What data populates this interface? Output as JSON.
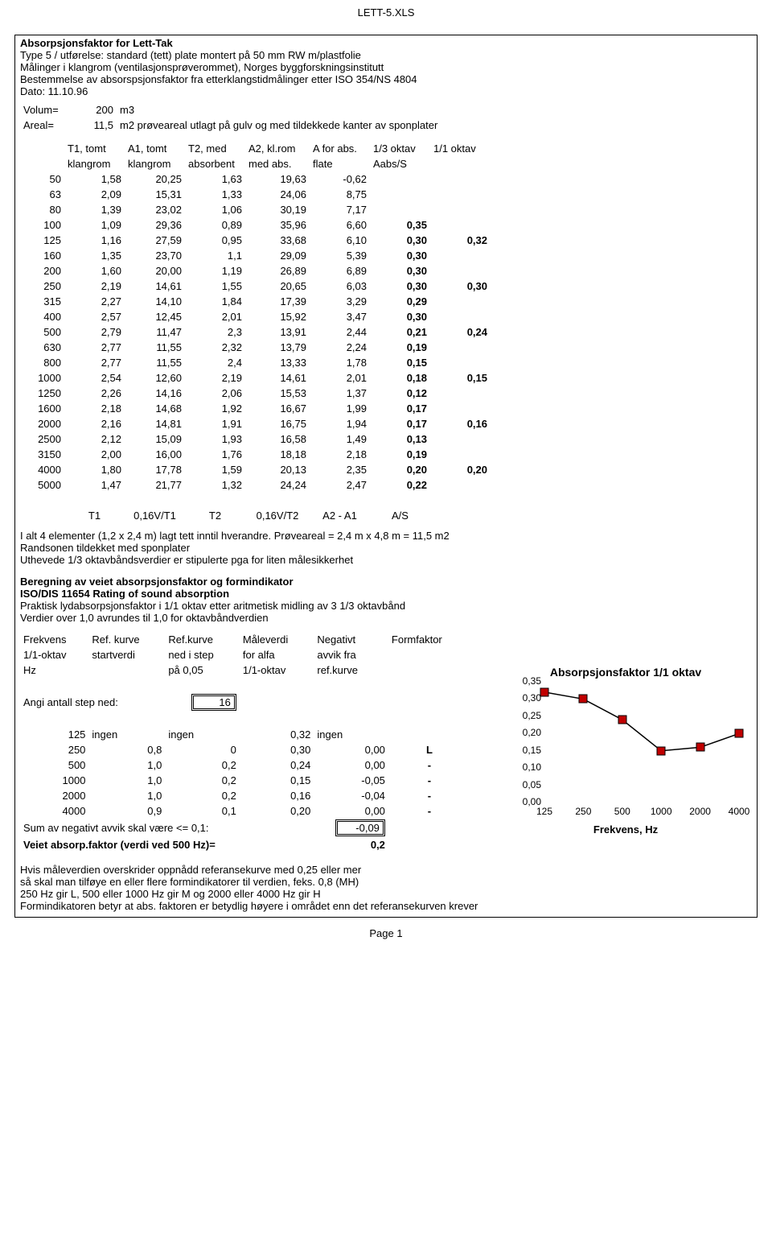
{
  "filename": "LETT-5.XLS",
  "header": {
    "title": "Absorpsjonsfaktor for Lett-Tak",
    "line2": "Type 5 / utførelse: standard (tett) plate montert på 50 mm RW m/plastfolie",
    "line3": "Målinger i klangrom (ventilasjonsprøverommet), Norges byggforskningsinstitutt",
    "line4": "Bestemmelse av absorspsjonsfaktor fra etterklangstidmålinger etter ISO 354/NS 4804",
    "line5": "Dato: 11.10.96"
  },
  "params": {
    "volum_label": "Volum=",
    "volum": "200",
    "volum_unit": "m3",
    "areal_label": "Areal=",
    "areal": "11,5",
    "areal_unit": "m2 prøveareal utlagt på gulv og med tildekkede kanter av sponplater"
  },
  "main_table": {
    "head1": [
      "",
      "T1, tomt",
      "A1,  tomt",
      "T2, med",
      "A2, kl.rom",
      "A for abs.",
      "1/3 oktav",
      "1/1 oktav"
    ],
    "head2": [
      "",
      "klangrom",
      "klangrom",
      "absorbent",
      "med abs.",
      "flate",
      "Aabs/S",
      ""
    ],
    "rows": [
      [
        "50",
        "1,58",
        "20,25",
        "1,63",
        "19,63",
        "-0,62",
        "",
        ""
      ],
      [
        "63",
        "2,09",
        "15,31",
        "1,33",
        "24,06",
        "8,75",
        "",
        ""
      ],
      [
        "80",
        "1,39",
        "23,02",
        "1,06",
        "30,19",
        "7,17",
        "",
        ""
      ],
      [
        "100",
        "1,09",
        "29,36",
        "0,89",
        "35,96",
        "6,60",
        "0,35",
        ""
      ],
      [
        "125",
        "1,16",
        "27,59",
        "0,95",
        "33,68",
        "6,10",
        "0,30",
        "0,32"
      ],
      [
        "160",
        "1,35",
        "23,70",
        "1,1",
        "29,09",
        "5,39",
        "0,30",
        ""
      ],
      [
        "200",
        "1,60",
        "20,00",
        "1,19",
        "26,89",
        "6,89",
        "0,30",
        ""
      ],
      [
        "250",
        "2,19",
        "14,61",
        "1,55",
        "20,65",
        "6,03",
        "0,30",
        "0,30"
      ],
      [
        "315",
        "2,27",
        "14,10",
        "1,84",
        "17,39",
        "3,29",
        "0,29",
        ""
      ],
      [
        "400",
        "2,57",
        "12,45",
        "2,01",
        "15,92",
        "3,47",
        "0,30",
        ""
      ],
      [
        "500",
        "2,79",
        "11,47",
        "2,3",
        "13,91",
        "2,44",
        "0,21",
        "0,24"
      ],
      [
        "630",
        "2,77",
        "11,55",
        "2,32",
        "13,79",
        "2,24",
        "0,19",
        ""
      ],
      [
        "800",
        "2,77",
        "11,55",
        "2,4",
        "13,33",
        "1,78",
        "0,15",
        ""
      ],
      [
        "1000",
        "2,54",
        "12,60",
        "2,19",
        "14,61",
        "2,01",
        "0,18",
        "0,15"
      ],
      [
        "1250",
        "2,26",
        "14,16",
        "2,06",
        "15,53",
        "1,37",
        "0,12",
        ""
      ],
      [
        "1600",
        "2,18",
        "14,68",
        "1,92",
        "16,67",
        "1,99",
        "0,17",
        ""
      ],
      [
        "2000",
        "2,16",
        "14,81",
        "1,91",
        "16,75",
        "1,94",
        "0,17",
        "0,16"
      ],
      [
        "2500",
        "2,12",
        "15,09",
        "1,93",
        "16,58",
        "1,49",
        "0,13",
        ""
      ],
      [
        "3150",
        "2,00",
        "16,00",
        "1,76",
        "18,18",
        "2,18",
        "0,19",
        ""
      ],
      [
        "4000",
        "1,80",
        "17,78",
        "1,59",
        "20,13",
        "2,35",
        "0,20",
        "0,20"
      ],
      [
        "5000",
        "1,47",
        "21,77",
        "1,32",
        "24,24",
        "2,47",
        "0,22",
        ""
      ]
    ],
    "footer_row": [
      "",
      "T1",
      "0,16V/T1",
      "T2",
      "0,16V/T2",
      "A2 - A1",
      "A/S",
      ""
    ]
  },
  "notes1": [
    "I alt 4 elementer (1,2 x 2,4 m) lagt tett inntil hverandre. Prøveareal = 2,4 m x 4,8 m = 11,5 m2",
    "Randsonen tildekket med sponplater",
    "Uthevede 1/3 oktavbåndsverdier er stipulerte pga for liten målesikkerhet"
  ],
  "section2_title": "Beregning av veiet absorpsjonsfaktor og formindikator",
  "section2_sub": "ISO/DIS 11654 Rating of sound absorption",
  "section2_lines": [
    "Praktisk lydabsorpsjonsfaktor i 1/1 oktav etter aritmetisk midling av 3 1/3 oktavbånd",
    "Verdier over 1,0 avrundes til 1,0 for oktavbåndverdien"
  ],
  "table2": {
    "head1": [
      "Frekvens",
      "Ref. kurve",
      "Ref.kurve",
      "Måleverdi",
      "Negativt",
      "Formfaktor"
    ],
    "head2": [
      "1/1-oktav",
      "startverdi",
      "ned i step",
      "for alfa",
      "avvik fra",
      ""
    ],
    "head3": [
      "Hz",
      "",
      "på 0,05",
      "1/1-oktav",
      "ref.kurve",
      ""
    ],
    "step_label": "Angi antall step ned:",
    "step_value": "16",
    "rows": [
      [
        "125",
        "ingen",
        "ingen",
        "0,32",
        "ingen",
        ""
      ],
      [
        "250",
        "0,8",
        "0",
        "0,30",
        "0,00",
        "L"
      ],
      [
        "500",
        "1,0",
        "0,2",
        "0,24",
        "0,00",
        "-"
      ],
      [
        "1000",
        "1,0",
        "0,2",
        "0,15",
        "-0,05",
        "-"
      ],
      [
        "2000",
        "1,0",
        "0,2",
        "0,16",
        "-0,04",
        "-"
      ],
      [
        "4000",
        "0,9",
        "0,1",
        "0,20",
        "0,00",
        "-"
      ]
    ],
    "sum_label": "Sum av negativt avvik skal være <= 0,1:",
    "sum_value": "-0,09",
    "result_label": "Veiet absorp.faktor (verdi ved 500 Hz)=",
    "result_value": "0,2"
  },
  "chart": {
    "title": "Absorpsjonsfaktor 1/1 oktav",
    "xaxis_title": "Frekvens, Hz",
    "xticks": [
      "125",
      "250",
      "500",
      "1000",
      "2000",
      "4000"
    ],
    "yticks": [
      "0,00",
      "0,05",
      "0,10",
      "0,15",
      "0,20",
      "0,25",
      "0,30",
      "0,35"
    ],
    "ylim_max": 0.35,
    "values": [
      0.32,
      0.3,
      0.24,
      0.15,
      0.16,
      0.2
    ],
    "marker_color": "#c00000",
    "line_color": "#000000"
  },
  "notes2": [
    "Hvis måleverdien overskrider oppnådd referansekurve med 0,25 eller mer",
    "så skal man tilføye en eller flere formindikatorer til verdien, feks. 0,8 (MH)",
    "250 Hz gir L, 500 eller 1000 Hz gir M og 2000 eller 4000 Hz gir H",
    "Formindikatoren betyr at abs. faktoren er betydlig høyere i området enn det referansekurven krever"
  ],
  "page_footer": "Page 1"
}
